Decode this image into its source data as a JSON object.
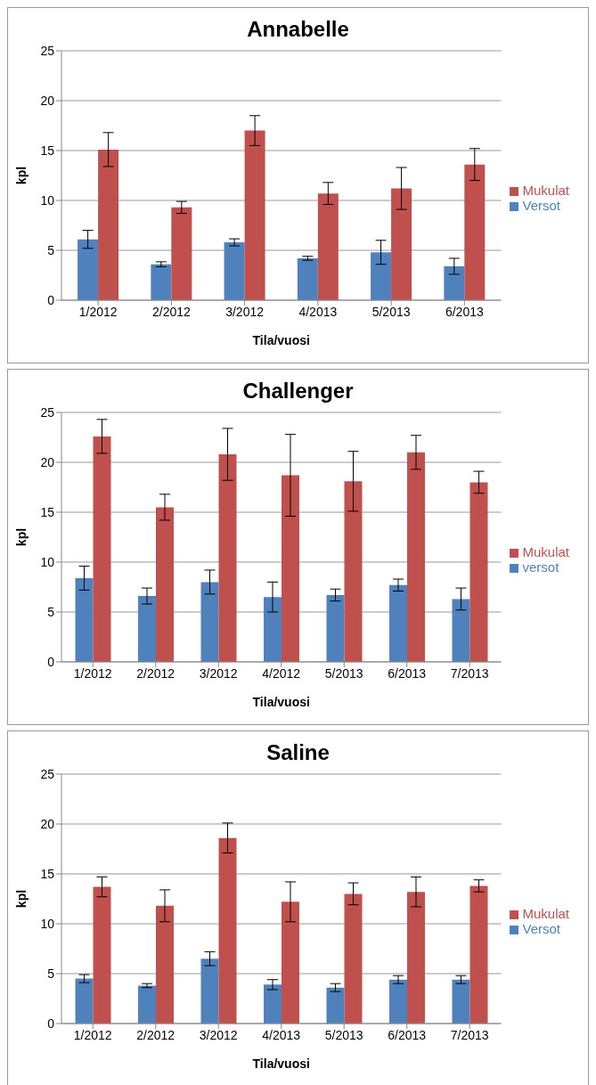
{
  "chart_data": [
    {
      "type": "bar",
      "title": "Annabelle",
      "xlabel": "Tila/vuosi",
      "ylabel": "kpl",
      "categories": [
        "1/2012",
        "2/2012",
        "3/2012",
        "4/2013",
        "5/2013",
        "6/2013"
      ],
      "series": [
        {
          "name": "Versot",
          "color": "#4f81bd",
          "values": [
            6.1,
            3.6,
            5.8,
            4.2,
            4.8,
            3.4
          ],
          "errors": [
            0.9,
            0.25,
            0.35,
            0.2,
            1.2,
            0.8
          ]
        },
        {
          "name": "Mukulat",
          "color": "#c0504d",
          "values": [
            15.1,
            9.3,
            17.0,
            10.7,
            11.2,
            13.6
          ],
          "errors": [
            1.7,
            0.6,
            1.5,
            1.1,
            2.1,
            1.6
          ]
        }
      ],
      "ylim": [
        0,
        25
      ],
      "yticks": [
        0,
        5,
        10,
        15,
        20,
        25
      ],
      "grid": "y",
      "legend": "right"
    },
    {
      "type": "bar",
      "title": "Challenger",
      "xlabel": "Tila/vuosi",
      "ylabel": "kpl",
      "categories": [
        "1/2012",
        "2/2012",
        "3/2012",
        "4/2012",
        "5/2013",
        "6/2013",
        "7/2013"
      ],
      "series": [
        {
          "name": "versot",
          "color": "#4f81bd",
          "values": [
            8.4,
            6.6,
            8.0,
            6.5,
            6.7,
            7.7,
            6.3
          ],
          "errors": [
            1.2,
            0.8,
            1.2,
            1.5,
            0.6,
            0.6,
            1.1
          ]
        },
        {
          "name": "Mukulat",
          "color": "#c0504d",
          "values": [
            22.6,
            15.5,
            20.8,
            18.7,
            18.1,
            21.0,
            18.0
          ],
          "errors": [
            1.7,
            1.3,
            2.6,
            4.1,
            3.0,
            1.7,
            1.1
          ]
        }
      ],
      "ylim": [
        0,
        25
      ],
      "yticks": [
        0,
        5,
        10,
        15,
        20,
        25
      ],
      "grid": "y",
      "legend": "right"
    },
    {
      "type": "bar",
      "title": "Saline",
      "xlabel": "Tila/vuosi",
      "ylabel": "kpl",
      "categories": [
        "1/2012",
        "2/2012",
        "3/2012",
        "4/2013",
        "5/2013",
        "6/2013",
        "7/2013"
      ],
      "series": [
        {
          "name": "Versot",
          "color": "#4f81bd",
          "values": [
            4.5,
            3.8,
            6.5,
            3.9,
            3.6,
            4.4,
            4.4
          ],
          "errors": [
            0.4,
            0.2,
            0.7,
            0.5,
            0.4,
            0.4,
            0.4
          ]
        },
        {
          "name": "Mukulat",
          "color": "#c0504d",
          "values": [
            13.7,
            11.8,
            18.6,
            12.2,
            13.0,
            13.2,
            13.8
          ],
          "errors": [
            1.0,
            1.6,
            1.5,
            2.0,
            1.1,
            1.5,
            0.6
          ]
        }
      ],
      "ylim": [
        0,
        25
      ],
      "yticks": [
        0,
        5,
        10,
        15,
        20,
        25
      ],
      "grid": "y",
      "legend": "right"
    }
  ]
}
